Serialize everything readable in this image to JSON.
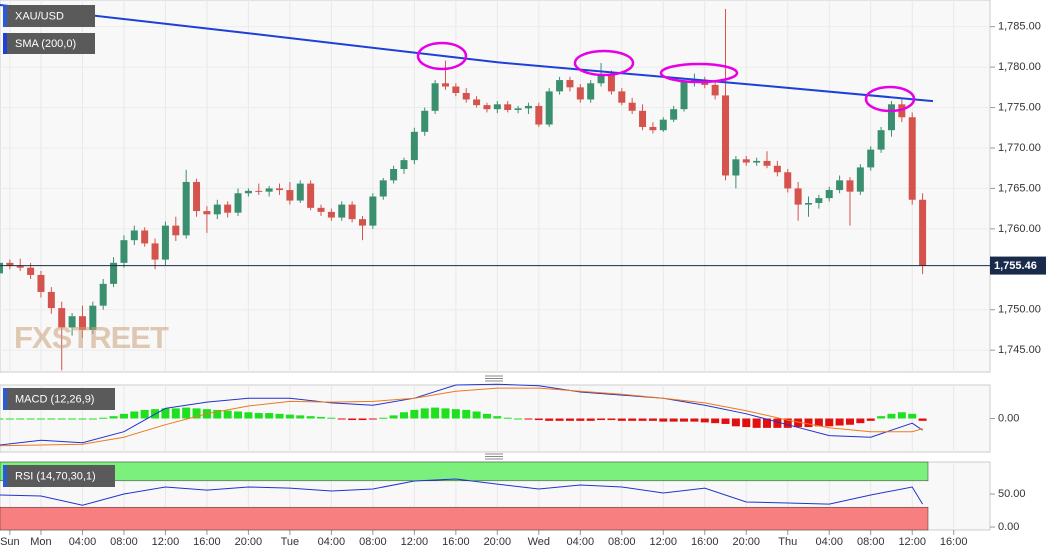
{
  "chart_data": [
    {
      "type": "candlestick",
      "title": "XAU/USD",
      "watermark": "FXSTREET",
      "up_color": "#3a8f6f",
      "down_color": "#d4534c",
      "xlim": [
        -3.95,
        91.5
      ],
      "ylim": [
        1742.3,
        1788.3
      ],
      "xticks": [
        {
          "value": -3,
          "label": "Sun"
        },
        {
          "value": 0,
          "label": "Mon"
        },
        {
          "value": 4,
          "label": "04:00"
        },
        {
          "value": 8,
          "label": "08:00"
        },
        {
          "value": 12,
          "label": "12:00"
        },
        {
          "value": 16,
          "label": "16:00"
        },
        {
          "value": 20,
          "label": "20:00"
        },
        {
          "value": 24,
          "label": "Tue"
        },
        {
          "value": 28,
          "label": "04:00"
        },
        {
          "value": 32,
          "label": "08:00"
        },
        {
          "value": 36,
          "label": "12:00"
        },
        {
          "value": 40,
          "label": "16:00"
        },
        {
          "value": 44,
          "label": "20:00"
        },
        {
          "value": 48,
          "label": "Wed"
        },
        {
          "value": 52,
          "label": "04:00"
        },
        {
          "value": 56,
          "label": "08:00"
        },
        {
          "value": 60,
          "label": "12:00"
        },
        {
          "value": 64,
          "label": "16:00"
        },
        {
          "value": 68,
          "label": "20:00"
        },
        {
          "value": 72,
          "label": "Thu"
        },
        {
          "value": 76,
          "label": "04:00"
        },
        {
          "value": 80,
          "label": "08:00"
        },
        {
          "value": 84,
          "label": "12:00"
        },
        {
          "value": 88,
          "label": "16:00"
        }
      ],
      "yticks": [
        {
          "value": 1745,
          "label": "1,745.00"
        },
        {
          "value": 1750,
          "label": "1,750.00"
        },
        {
          "value": 1760,
          "label": "1,760.00"
        },
        {
          "value": 1765,
          "label": "1,765.00"
        },
        {
          "value": 1770,
          "label": "1,770.00"
        },
        {
          "value": 1775,
          "label": "1,775.00"
        },
        {
          "value": 1780,
          "label": "1,780.00"
        },
        {
          "value": 1785,
          "label": "1,785.00"
        }
      ],
      "last_price": {
        "value": 1755.46,
        "label": "1,755.46"
      },
      "x": [
        -4,
        -3,
        -2,
        -1,
        0,
        1,
        2,
        3,
        4,
        5,
        6,
        7,
        8,
        9,
        10,
        11,
        12,
        13,
        14,
        15,
        16,
        17,
        18,
        19,
        20,
        21,
        22,
        23,
        24,
        25,
        26,
        27,
        28,
        29,
        30,
        31,
        32,
        33,
        34,
        35,
        36,
        37,
        38,
        39,
        40,
        41,
        42,
        43,
        44,
        45,
        46,
        47,
        48,
        49,
        50,
        51,
        52,
        53,
        54,
        55,
        56,
        57,
        58,
        59,
        60,
        61,
        62,
        63,
        64,
        65,
        66,
        67,
        68,
        69,
        70,
        71,
        72,
        73,
        74,
        75,
        76,
        77,
        78,
        79,
        80,
        81,
        82,
        83,
        84,
        85
      ],
      "candles": [
        [
          1754.5,
          1756.5,
          1753.5,
          1755.8
        ],
        [
          1755.8,
          1756.2,
          1755,
          1755.4
        ],
        [
          1755.4,
          1756.3,
          1754.8,
          1755.2
        ],
        [
          1755.2,
          1755.8,
          1753.8,
          1754.3
        ],
        [
          1754.3,
          1754.8,
          1751.5,
          1752.2
        ],
        [
          1752.2,
          1752.8,
          1749.5,
          1750.2
        ],
        [
          1750.2,
          1751,
          1742.5,
          1747.8
        ],
        [
          1747.8,
          1749.6,
          1746.8,
          1749.2
        ],
        [
          1749.2,
          1750.5,
          1746.5,
          1747.5
        ],
        [
          1747.5,
          1751,
          1747,
          1750.5
        ],
        [
          1750.5,
          1753.8,
          1750,
          1753.2
        ],
        [
          1753.2,
          1756.5,
          1752.8,
          1755.8
        ],
        [
          1755.8,
          1759.2,
          1755.2,
          1758.6
        ],
        [
          1758.6,
          1760.4,
          1758,
          1759.8
        ],
        [
          1759.8,
          1760.2,
          1757.8,
          1758.2
        ],
        [
          1758.2,
          1758.8,
          1755,
          1756.2
        ],
        [
          1756.2,
          1760.9,
          1755.5,
          1760.4
        ],
        [
          1760.4,
          1761.5,
          1758.5,
          1759.2
        ],
        [
          1759.2,
          1767.3,
          1758.8,
          1765.8
        ],
        [
          1765.8,
          1766.2,
          1761.5,
          1762.2
        ],
        [
          1762.2,
          1762.8,
          1759.5,
          1761.8
        ],
        [
          1761.8,
          1763.6,
          1761.2,
          1763
        ],
        [
          1763,
          1763.4,
          1761.4,
          1762
        ],
        [
          1762,
          1765,
          1761.6,
          1764.4
        ],
        [
          1764.4,
          1765,
          1764,
          1764.7
        ],
        [
          1764.7,
          1765.6,
          1764.2,
          1764.6
        ],
        [
          1764.6,
          1765.3,
          1764,
          1765
        ],
        [
          1765,
          1765.6,
          1764.2,
          1764.8
        ],
        [
          1764.8,
          1765.8,
          1763,
          1763.5
        ],
        [
          1763.5,
          1766,
          1763.2,
          1765.6
        ],
        [
          1765.6,
          1766,
          1762.3,
          1762.6
        ],
        [
          1762.6,
          1763,
          1761.6,
          1762.1
        ],
        [
          1762.1,
          1762.5,
          1761,
          1761.4
        ],
        [
          1761.4,
          1763.4,
          1761,
          1763
        ],
        [
          1763,
          1763.4,
          1760.8,
          1761.2
        ],
        [
          1761.2,
          1761.6,
          1758.6,
          1760.4
        ],
        [
          1760.4,
          1764.4,
          1760,
          1764
        ],
        [
          1764,
          1766.3,
          1763.6,
          1766
        ],
        [
          1766,
          1767.8,
          1765.6,
          1767.4
        ],
        [
          1767.4,
          1768.8,
          1766.8,
          1768.5
        ],
        [
          1768.5,
          1772.5,
          1768,
          1772
        ],
        [
          1772,
          1775,
          1771.5,
          1774.6
        ],
        [
          1774.6,
          1778.4,
          1774.2,
          1778
        ],
        [
          1778,
          1780.8,
          1777.2,
          1777.6
        ],
        [
          1777.6,
          1778,
          1776.4,
          1776.8
        ],
        [
          1776.8,
          1777.4,
          1775.6,
          1776
        ],
        [
          1776,
          1776.4,
          1775,
          1775.3
        ],
        [
          1775.3,
          1775.6,
          1774.4,
          1774.8
        ],
        [
          1774.8,
          1775.8,
          1774.3,
          1775.4
        ],
        [
          1775.4,
          1775.8,
          1774.4,
          1774.7
        ],
        [
          1774.7,
          1775.2,
          1774.3,
          1774.9
        ],
        [
          1774.9,
          1775.6,
          1774.2,
          1775.2
        ],
        [
          1775.2,
          1775.6,
          1772.6,
          1772.9
        ],
        [
          1772.9,
          1777.4,
          1772.6,
          1777
        ],
        [
          1777,
          1778.8,
          1776.6,
          1778.4
        ],
        [
          1778.4,
          1778.8,
          1777,
          1777.5
        ],
        [
          1777.5,
          1777.9,
          1775.6,
          1776
        ],
        [
          1776,
          1778.4,
          1775.6,
          1778
        ],
        [
          1778,
          1780.5,
          1777.6,
          1779
        ],
        [
          1779,
          1779.6,
          1776.6,
          1777
        ],
        [
          1777,
          1777.4,
          1775.3,
          1775.6
        ],
        [
          1775.6,
          1776.2,
          1774.2,
          1774.6
        ],
        [
          1774.6,
          1775.4,
          1772.2,
          1772.6
        ],
        [
          1772.6,
          1773.2,
          1771.8,
          1772.2
        ],
        [
          1772.2,
          1773.8,
          1772,
          1773.5
        ],
        [
          1773.5,
          1775.2,
          1773.2,
          1774.8
        ],
        [
          1774.8,
          1778.6,
          1774.5,
          1778.2
        ],
        [
          1778.2,
          1779.2,
          1777.6,
          1778.4
        ],
        [
          1778.4,
          1778.8,
          1777.4,
          1777.8
        ],
        [
          1777.8,
          1778.3,
          1776,
          1776.5
        ],
        [
          1776.5,
          1787.2,
          1766,
          1766.6
        ],
        [
          1766.6,
          1769,
          1765,
          1768.6
        ],
        [
          1768.6,
          1769,
          1767.8,
          1768.2
        ],
        [
          1768.2,
          1768.8,
          1767.8,
          1768.4
        ],
        [
          1768.4,
          1769.6,
          1767.5,
          1767.8
        ],
        [
          1767.8,
          1768.4,
          1766.5,
          1767
        ],
        [
          1767,
          1767.4,
          1764.5,
          1765
        ],
        [
          1765,
          1765.8,
          1761,
          1763
        ],
        [
          1763,
          1764,
          1761.5,
          1763.2
        ],
        [
          1763.2,
          1764.2,
          1762.5,
          1763.8
        ],
        [
          1763.8,
          1765.2,
          1763.4,
          1764.8
        ],
        [
          1764.8,
          1766.6,
          1764.4,
          1766
        ],
        [
          1766,
          1766.4,
          1760.4,
          1764.6
        ],
        [
          1764.6,
          1768,
          1764.2,
          1767.6
        ],
        [
          1767.6,
          1770.2,
          1767.2,
          1769.8
        ],
        [
          1769.8,
          1772.6,
          1769.4,
          1772.2
        ],
        [
          1772.2,
          1775.8,
          1771.4,
          1775.4
        ],
        [
          1775.4,
          1776,
          1773.2,
          1773.8
        ],
        [
          1773.8,
          1774.4,
          1763,
          1763.6
        ],
        [
          1763.6,
          1764.4,
          1754.4,
          1755.46
        ]
      ],
      "sma": {
        "name": "SMA (200,0)",
        "color": "#1e3fd8",
        "x": [
          -4,
          20,
          44,
          68,
          86
        ],
        "values": [
          1787.7,
          1784.2,
          1780.6,
          1777.9,
          1775.8
        ]
      }
    },
    {
      "type": "macd",
      "title": "MACD (12,26,9)",
      "ylim": [
        -4.3,
        4.3
      ],
      "yticks": [
        {
          "value": 0,
          "label": "0.00"
        }
      ],
      "up_color": "#1fe01f",
      "down_color": "#e01010",
      "histogram": [
        0,
        0,
        0,
        0,
        0,
        0,
        0,
        0,
        0,
        0,
        0.1,
        0.3,
        0.6,
        0.9,
        1.1,
        1.2,
        1.3,
        1.3,
        1.4,
        1.3,
        1.2,
        1.1,
        1.0,
        0.9,
        0.8,
        0.7,
        0.7,
        0.6,
        0.5,
        0.4,
        0.3,
        0.2,
        0.1,
        -0.1,
        -0.2,
        -0.2,
        -0.1,
        0.1,
        0.4,
        0.8,
        1.1,
        1.3,
        1.4,
        1.3,
        1.2,
        1.1,
        0.9,
        0.6,
        0.3,
        0.1,
        0,
        -0.1,
        -0.2,
        -0.3,
        -0.3,
        -0.3,
        -0.3,
        -0.3,
        -0.2,
        -0.2,
        -0.3,
        -0.3,
        -0.3,
        -0.3,
        -0.4,
        -0.4,
        -0.4,
        -0.4,
        -0.5,
        -0.6,
        -0.7,
        -1.0,
        -1.1,
        -1.2,
        -1.2,
        -1.2,
        -1.2,
        -1.1,
        -1.1,
        -1.0,
        -1.0,
        -0.9,
        -0.8,
        -0.6,
        -0.3,
        0.3,
        0.6,
        0.8,
        0.6,
        -0.3
      ],
      "series": [
        {
          "color": "#2233cc",
          "x": [
            -4,
            0,
            4,
            8,
            12,
            16,
            20,
            24,
            28,
            32,
            36,
            40,
            44,
            48,
            52,
            56,
            60,
            64,
            68,
            72,
            76,
            80,
            84,
            85
          ],
          "values": [
            -3.4,
            -2.8,
            -3.1,
            -1.7,
            1.3,
            2.1,
            2.6,
            2.6,
            2.0,
            1.7,
            2.6,
            4.3,
            4.4,
            4.2,
            3.4,
            3.0,
            2.6,
            1.7,
            0.6,
            -0.8,
            -2.2,
            -2.4,
            -0.6,
            -1.5
          ]
        },
        {
          "color": "#ee7a1a",
          "x": [
            -4,
            0,
            4,
            8,
            12,
            16,
            20,
            24,
            28,
            32,
            36,
            40,
            44,
            48,
            52,
            56,
            60,
            64,
            68,
            72,
            76,
            80,
            84,
            85
          ],
          "values": [
            -3.5,
            -3.4,
            -3.3,
            -2.4,
            -0.8,
            0.6,
            1.6,
            2.2,
            2.1,
            2.2,
            2.6,
            3.5,
            3.9,
            3.9,
            3.5,
            3.1,
            2.6,
            2.0,
            1.0,
            -0.2,
            -1.2,
            -1.7,
            -1.7,
            -1.3
          ]
        }
      ]
    },
    {
      "type": "rsi",
      "title": "RSI (14,70,30,1)",
      "ylim": [
        -4.5,
        98.5
      ],
      "yticks": [
        {
          "value": 0,
          "label": "0.00"
        },
        {
          "value": 50,
          "label": "50.00"
        }
      ],
      "levels": [
        30,
        70
      ],
      "upper_color": "#7cf07c",
      "lower_color": "#f77f7f",
      "line": {
        "color": "#2233cc",
        "x": [
          -4,
          0,
          4,
          8,
          12,
          16,
          20,
          24,
          28,
          32,
          36,
          40,
          44,
          48,
          52,
          56,
          60,
          64,
          68,
          72,
          76,
          80,
          84,
          85
        ],
        "values": [
          48.5,
          47,
          33,
          50,
          60.6,
          56,
          60.6,
          59,
          54.5,
          57.6,
          69.7,
          72.7,
          65,
          57.6,
          63.6,
          60.6,
          51.5,
          59,
          37.9,
          36.4,
          34.8,
          48.5,
          60.6,
          34.8
        ]
      }
    }
  ]
}
